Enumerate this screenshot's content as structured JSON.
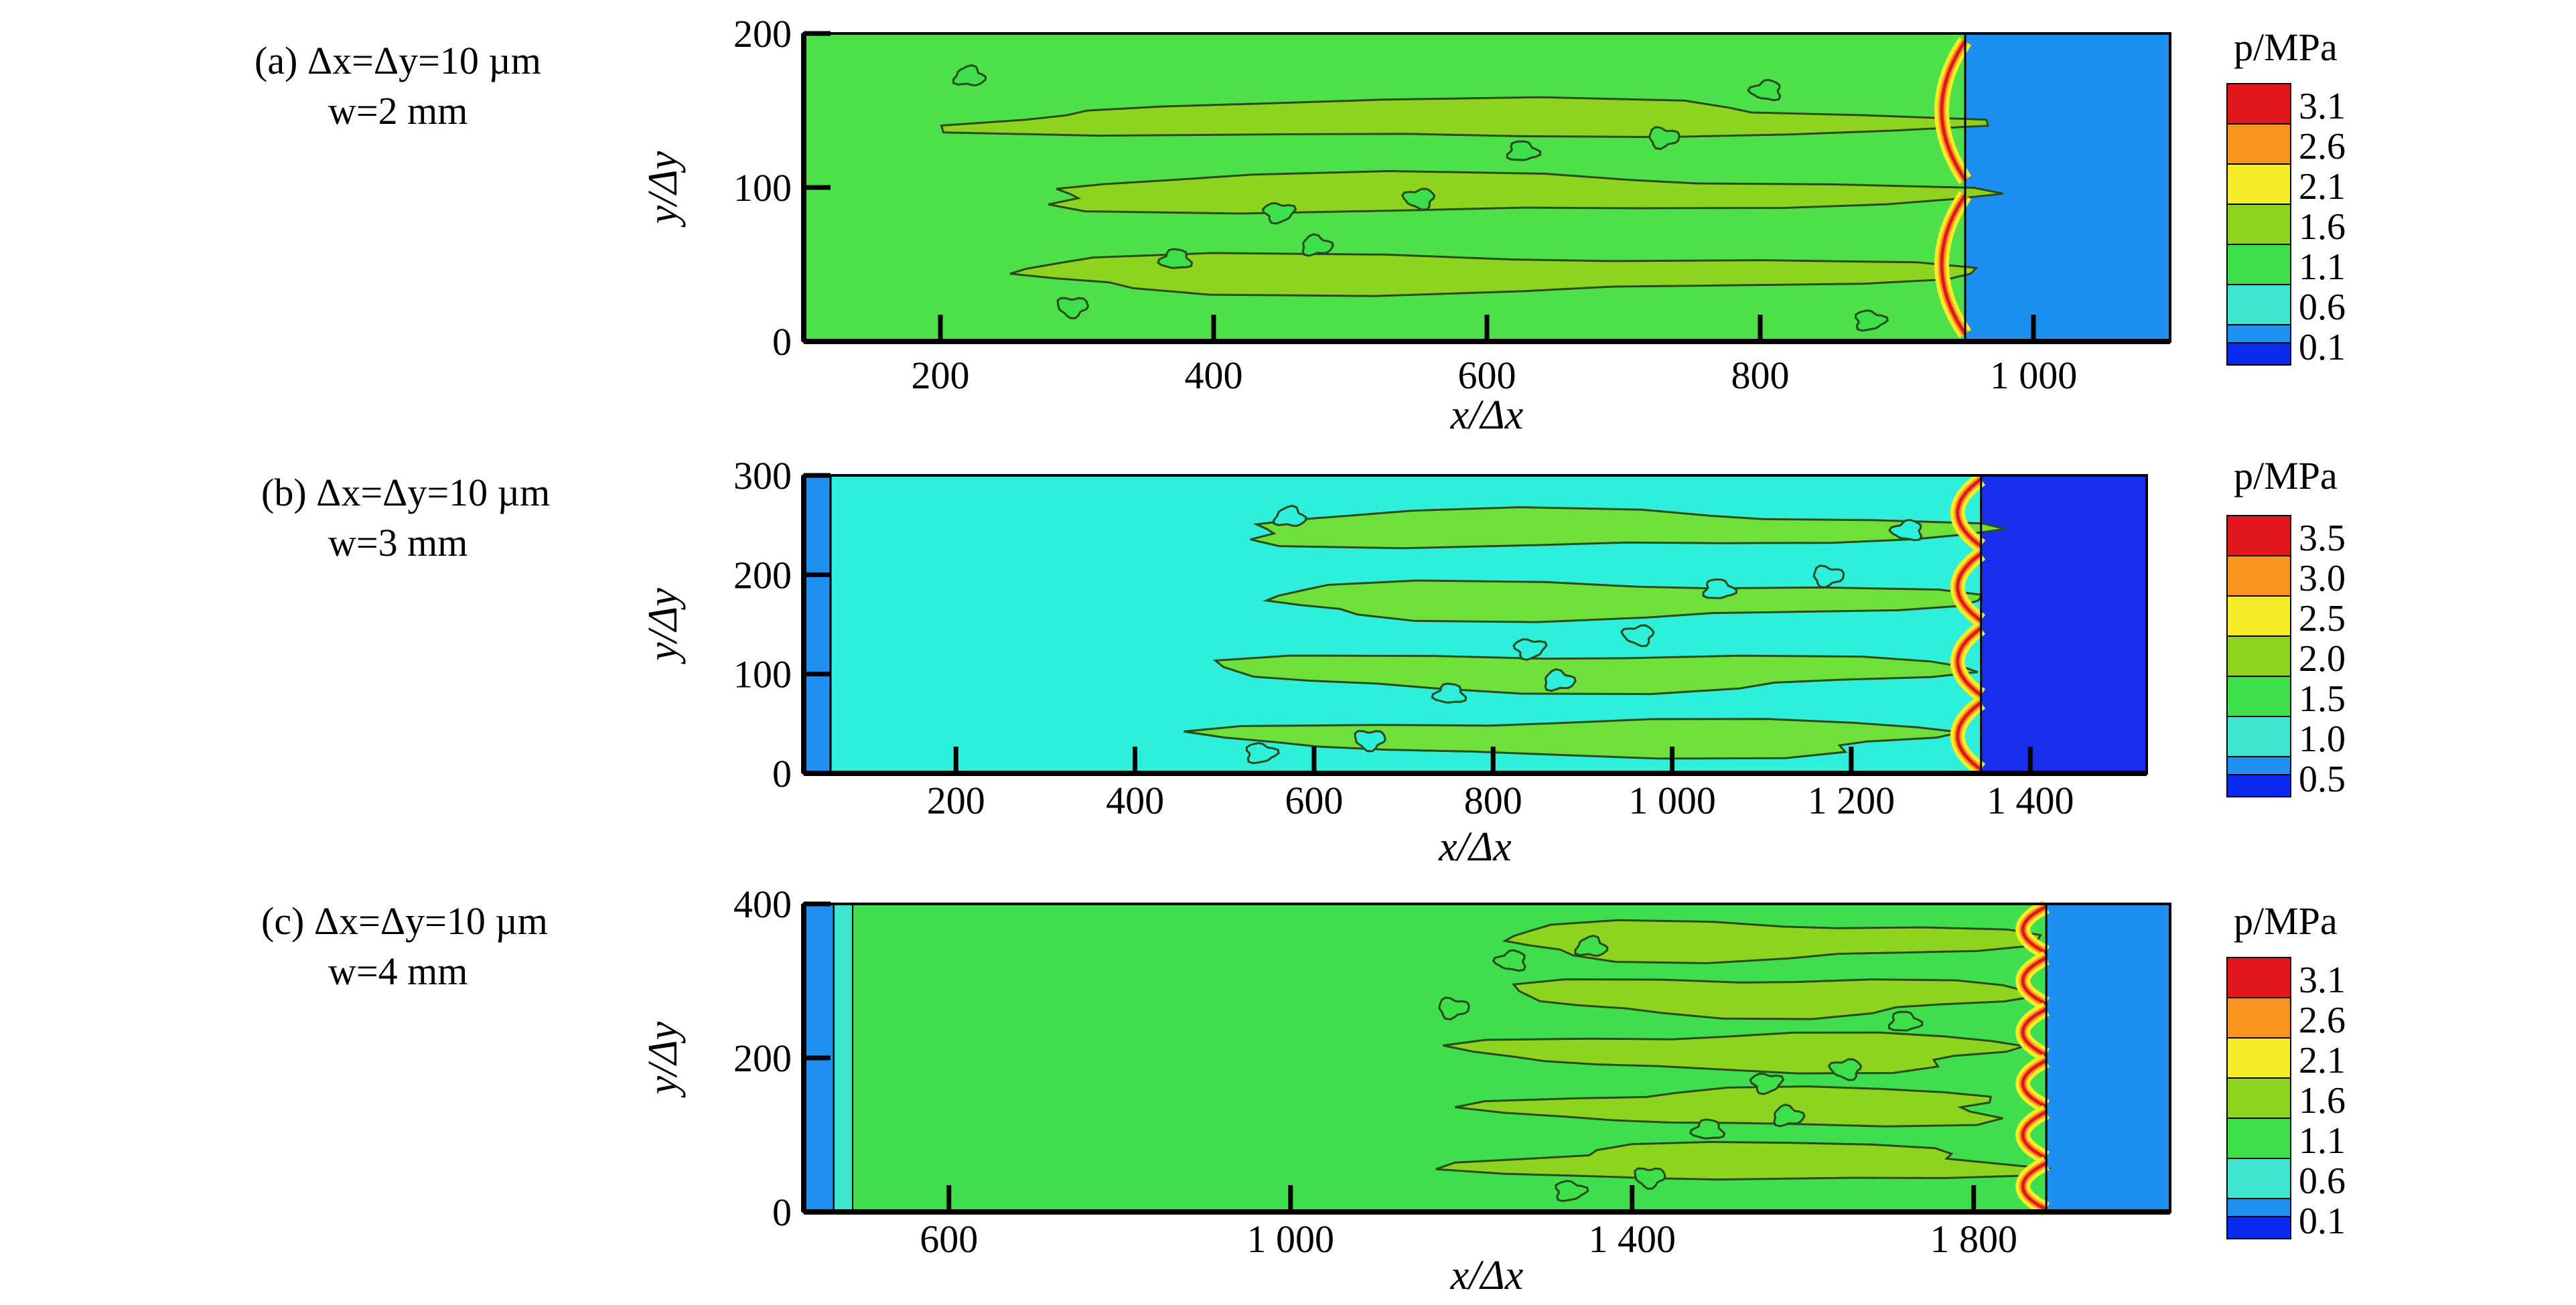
{
  "chart_data": [
    {
      "type": "heatmap",
      "panel_label": "(a)",
      "label_line1": "Δx=Δy=10 µm",
      "label_line2": "w=2 mm",
      "xlabel": "x/Δx",
      "ylabel": "y/Δy",
      "xlim": [
        100,
        1100
      ],
      "ylim": [
        0,
        200
      ],
      "xticks": [
        200,
        400,
        600,
        800,
        1000
      ],
      "xtick_labels": [
        "200",
        "400",
        "600",
        "800",
        "1 000"
      ],
      "yticks": [
        0,
        100,
        200
      ],
      "ytick_labels": [
        "0",
        "100",
        "200"
      ],
      "front_x": 950,
      "colorbar_title": "p/MPa",
      "colorbar_levels": [
        "3.1",
        "2.6",
        "2.1",
        "1.6",
        "1.1",
        "0.6",
        "0.1"
      ],
      "colorbar_colors": [
        "#e3161b",
        "#f7931e",
        "#f3ec26",
        "#8ed31f",
        "#3de04a",
        "#3ee6d0",
        "#1f8ff0"
      ],
      "background_color": "#4ee04a",
      "unburned_color": "#1c8ff0"
    },
    {
      "type": "heatmap",
      "panel_label": "(b)",
      "label_line1": "Δx=Δy=10 µm",
      "label_line2": "w=3 mm",
      "xlabel": "x/Δx",
      "ylabel": "y/Δy",
      "xlim": [
        30,
        1530
      ],
      "ylim": [
        0,
        300
      ],
      "xticks": [
        200,
        400,
        600,
        800,
        1000,
        1200,
        1400
      ],
      "xtick_labels": [
        "200",
        "400",
        "600",
        "800",
        "1 000",
        "1 200",
        "1 400"
      ],
      "yticks": [
        0,
        100,
        200,
        300
      ],
      "ytick_labels": [
        "0",
        "100",
        "200",
        "300"
      ],
      "front_x": 1345,
      "colorbar_title": "p/MPa",
      "colorbar_levels": [
        "3.5",
        "3.0",
        "2.5",
        "2.0",
        "1.5",
        "1.0",
        "0.5"
      ],
      "colorbar_colors": [
        "#e3161b",
        "#f7931e",
        "#f3ec26",
        "#8ed31f",
        "#3de04a",
        "#3ee6d0",
        "#1f8ff0"
      ],
      "background_color": "#2ef0da",
      "unburned_color": "#1a2ef0"
    },
    {
      "type": "heatmap",
      "panel_label": "(c)",
      "label_line1": "Δx=Δy=10 µm",
      "label_line2": "w=4 mm",
      "xlabel": "x/Δx",
      "ylabel": "y/Δy",
      "xlim": [
        430,
        2030
      ],
      "ylim": [
        0,
        400
      ],
      "xticks": [
        600,
        1000,
        1400,
        1800
      ],
      "xtick_labels": [
        "600",
        "1 000",
        "1 400",
        "1 800"
      ],
      "yticks": [
        0,
        200,
        400
      ],
      "ytick_labels": [
        "0",
        "200",
        "400"
      ],
      "front_x": 1885,
      "colorbar_title": "p/MPa",
      "colorbar_levels": [
        "3.1",
        "2.6",
        "2.1",
        "1.6",
        "1.1",
        "0.6",
        "0.1"
      ],
      "colorbar_colors": [
        "#e3161b",
        "#f7931e",
        "#f3ec26",
        "#8ed31f",
        "#3de04a",
        "#3ee6d0",
        "#1f8ff0"
      ],
      "background_color": "#3ede4e",
      "unburned_color": "#1c8ff0"
    }
  ]
}
